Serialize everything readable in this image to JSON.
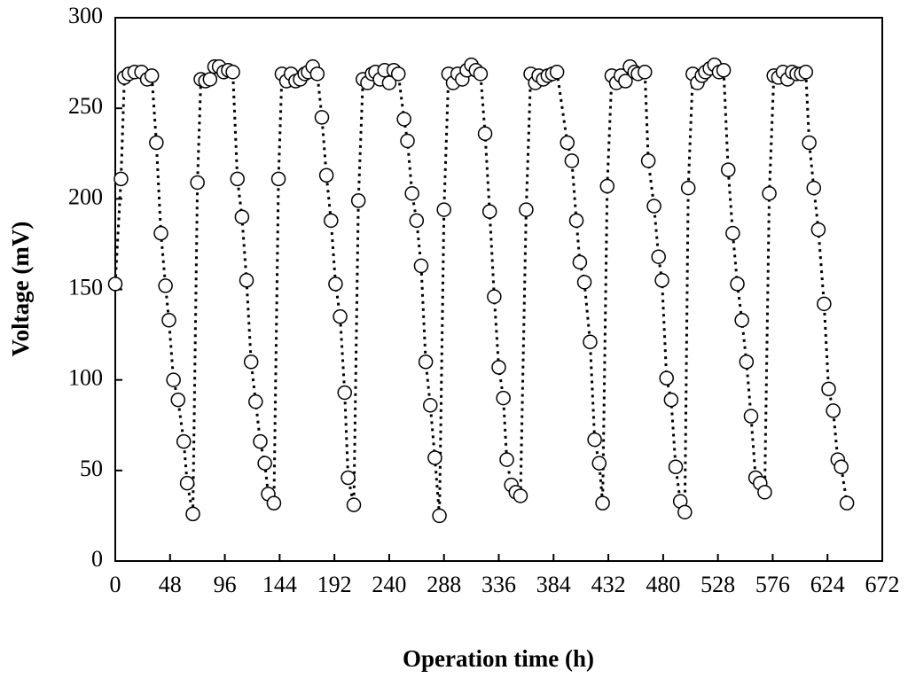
{
  "chart_data": {
    "type": "scatter",
    "x_label": "Operation time (h)",
    "y_label": "Voltage (mV)",
    "xlim": [
      0,
      672
    ],
    "ylim": [
      0,
      300
    ],
    "xticks": [
      0,
      48,
      96,
      144,
      192,
      240,
      288,
      336,
      384,
      432,
      480,
      528,
      576,
      624,
      672
    ],
    "yticks": [
      0,
      50,
      100,
      150,
      200,
      250,
      300
    ],
    "line": "dotted",
    "marker": "circle",
    "color": "#000000",
    "marker_fill": "#ffffff",
    "x": [
      0,
      5,
      8,
      12,
      17,
      23,
      28,
      32,
      36,
      40,
      44,
      47,
      51,
      55,
      60,
      63,
      68,
      72,
      75,
      79,
      83,
      87,
      91,
      95,
      99,
      103,
      107,
      111,
      115,
      119,
      123,
      127,
      131,
      134,
      139,
      143,
      146,
      150,
      154,
      158,
      162,
      166,
      169,
      173,
      177,
      181,
      185,
      189,
      193,
      197,
      201,
      204,
      209,
      213,
      217,
      221,
      225,
      228,
      232,
      236,
      240,
      244,
      248,
      253,
      256,
      260,
      264,
      268,
      272,
      276,
      280,
      284,
      288,
      292,
      296,
      300,
      304,
      308,
      312,
      316,
      320,
      324,
      328,
      332,
      336,
      340,
      343,
      347,
      351,
      355,
      360,
      364,
      368,
      371,
      375,
      379,
      383,
      387,
      396,
      400,
      404,
      407,
      411,
      416,
      420,
      424,
      427,
      431,
      435,
      439,
      443,
      447,
      451,
      455,
      458,
      464,
      467,
      472,
      476,
      479,
      483,
      487,
      491,
      495,
      499,
      502,
      506,
      510,
      514,
      517,
      521,
      525,
      529,
      533,
      537,
      541,
      545,
      549,
      553,
      557,
      561,
      565,
      569,
      573,
      577,
      581,
      585,
      589,
      593,
      597,
      601,
      605,
      608,
      612,
      616,
      621,
      625,
      629,
      633,
      636,
      641
    ],
    "values": [
      153,
      211,
      267,
      269,
      270,
      270,
      266,
      268,
      231,
      181,
      152,
      133,
      100,
      89,
      66,
      43,
      26,
      209,
      266,
      265,
      266,
      273,
      273,
      270,
      271,
      270,
      211,
      190,
      155,
      110,
      88,
      66,
      54,
      37,
      32,
      211,
      269,
      265,
      269,
      265,
      266,
      269,
      270,
      273,
      269,
      245,
      213,
      188,
      153,
      135,
      93,
      46,
      31,
      199,
      266,
      264,
      269,
      270,
      266,
      271,
      264,
      271,
      269,
      244,
      232,
      203,
      188,
      163,
      110,
      86,
      57,
      25,
      194,
      269,
      264,
      269,
      266,
      271,
      274,
      271,
      269,
      236,
      193,
      146,
      107,
      90,
      56,
      42,
      38,
      36,
      194,
      269,
      264,
      268,
      266,
      268,
      269,
      270,
      231,
      221,
      188,
      165,
      154,
      121,
      67,
      54,
      32,
      207,
      268,
      264,
      268,
      265,
      273,
      270,
      269,
      270,
      221,
      196,
      168,
      155,
      101,
      89,
      52,
      33,
      27,
      206,
      269,
      264,
      268,
      270,
      272,
      274,
      270,
      271,
      216,
      181,
      153,
      133,
      110,
      80,
      46,
      43,
      38,
      203,
      268,
      267,
      270,
      266,
      270,
      269,
      269,
      270,
      231,
      206,
      183,
      142,
      95,
      83,
      56,
      52,
      32
    ]
  }
}
